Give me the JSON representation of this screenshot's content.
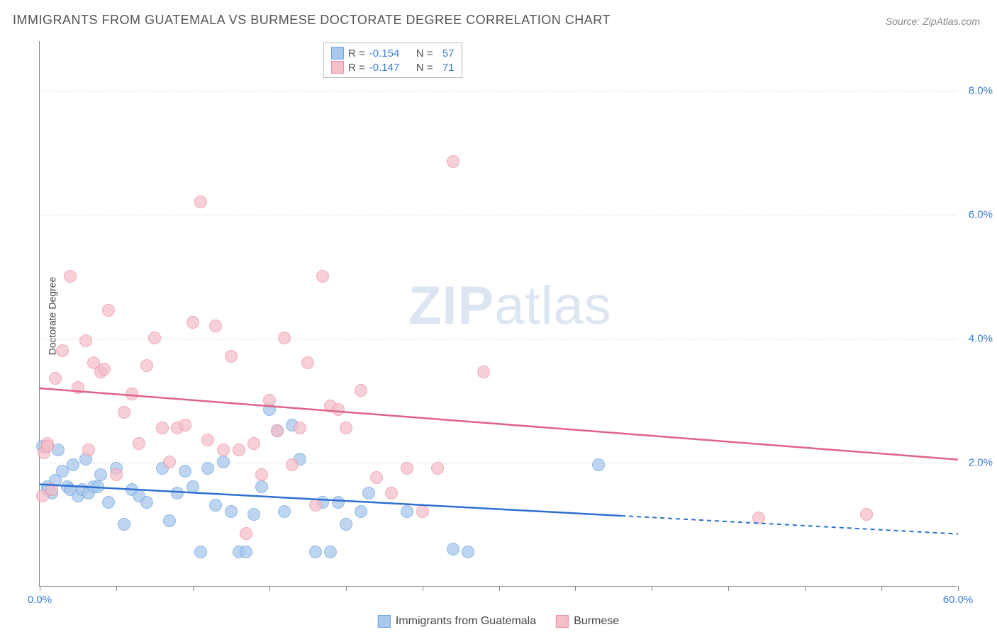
{
  "title": "IMMIGRANTS FROM GUATEMALA VS BURMESE DOCTORATE DEGREE CORRELATION CHART",
  "source_label": "Source: ZipAtlas.com",
  "y_axis_label": "Doctorate Degree",
  "watermark": {
    "bold": "ZIP",
    "rest": "atlas"
  },
  "chart": {
    "type": "scatter",
    "background_color": "#ffffff",
    "grid_color": "#dddddd",
    "axis_color": "#888888",
    "tick_label_color": "#3b7dd8",
    "xlim": [
      0,
      60
    ],
    "ylim": [
      0,
      8.8
    ],
    "x_ticks": [
      0,
      5,
      10,
      15,
      20,
      25,
      30,
      35,
      40,
      45,
      50,
      55,
      60
    ],
    "x_tick_labels": {
      "0": "0.0%",
      "60": "60.0%"
    },
    "y_ticks": [
      2,
      4,
      6,
      8
    ],
    "y_tick_labels": {
      "2": "2.0%",
      "4": "4.0%",
      "6": "6.0%",
      "8": "8.0%"
    },
    "marker_radius": 9,
    "marker_stroke_width": 1.5,
    "marker_fill_opacity": 0.35
  },
  "series": [
    {
      "name": "Immigrants from Guatemala",
      "color_fill": "#a8c8ec",
      "color_stroke": "#6fa3e0",
      "trend_color": "#2e6fd0",
      "R": "-0.154",
      "N": "57",
      "trend": {
        "x1": 0,
        "y1": 1.65,
        "x2": 60,
        "y2": 0.85,
        "solid_until_x": 38
      },
      "points": [
        [
          0.2,
          2.25
        ],
        [
          0.5,
          1.55
        ],
        [
          0.5,
          1.6
        ],
        [
          0.8,
          1.5
        ],
        [
          1.0,
          1.7
        ],
        [
          1.2,
          2.2
        ],
        [
          1.5,
          1.85
        ],
        [
          1.8,
          1.6
        ],
        [
          2.0,
          1.55
        ],
        [
          2.2,
          1.95
        ],
        [
          2.5,
          1.45
        ],
        [
          2.8,
          1.55
        ],
        [
          3.0,
          2.05
        ],
        [
          3.2,
          1.5
        ],
        [
          3.5,
          1.6
        ],
        [
          3.8,
          1.6
        ],
        [
          4.0,
          1.8
        ],
        [
          4.5,
          1.35
        ],
        [
          5.0,
          1.9
        ],
        [
          5.5,
          1.0
        ],
        [
          6.0,
          1.55
        ],
        [
          6.5,
          1.45
        ],
        [
          7.0,
          1.35
        ],
        [
          8.0,
          1.9
        ],
        [
          8.5,
          1.05
        ],
        [
          9.0,
          1.5
        ],
        [
          9.5,
          1.85
        ],
        [
          10.0,
          1.6
        ],
        [
          10.5,
          0.55
        ],
        [
          11.0,
          1.9
        ],
        [
          11.5,
          1.3
        ],
        [
          12.0,
          2.0
        ],
        [
          12.5,
          1.2
        ],
        [
          13.0,
          0.55
        ],
        [
          13.5,
          0.55
        ],
        [
          14.0,
          1.15
        ],
        [
          14.5,
          1.6
        ],
        [
          15.0,
          2.85
        ],
        [
          15.5,
          2.5
        ],
        [
          16.0,
          1.2
        ],
        [
          16.5,
          2.6
        ],
        [
          17.0,
          2.05
        ],
        [
          18.0,
          0.55
        ],
        [
          18.5,
          1.35
        ],
        [
          19.0,
          0.55
        ],
        [
          19.5,
          1.35
        ],
        [
          20.0,
          1.0
        ],
        [
          21.0,
          1.2
        ],
        [
          21.5,
          1.5
        ],
        [
          24.0,
          1.2
        ],
        [
          27.0,
          0.6
        ],
        [
          28.0,
          0.55
        ],
        [
          36.5,
          1.95
        ]
      ]
    },
    {
      "name": "Burmese",
      "color_fill": "#f5bfca",
      "color_stroke": "#ec91a5",
      "trend_color": "#e06385",
      "R": "-0.147",
      "N": "71",
      "trend": {
        "x1": 0,
        "y1": 3.2,
        "x2": 60,
        "y2": 2.05,
        "solid_until_x": 60
      },
      "points": [
        [
          0.2,
          1.45
        ],
        [
          0.3,
          2.15
        ],
        [
          0.5,
          2.3
        ],
        [
          0.5,
          2.25
        ],
        [
          0.8,
          1.55
        ],
        [
          1.0,
          3.35
        ],
        [
          1.5,
          3.8
        ],
        [
          2.0,
          5.0
        ],
        [
          2.5,
          3.2
        ],
        [
          3.0,
          3.95
        ],
        [
          3.2,
          2.2
        ],
        [
          3.5,
          3.6
        ],
        [
          4.0,
          3.45
        ],
        [
          4.2,
          3.5
        ],
        [
          4.5,
          4.45
        ],
        [
          5.0,
          1.8
        ],
        [
          5.5,
          2.8
        ],
        [
          6.0,
          3.1
        ],
        [
          6.5,
          2.3
        ],
        [
          7.0,
          3.55
        ],
        [
          7.5,
          4.0
        ],
        [
          8.0,
          2.55
        ],
        [
          8.5,
          2.0
        ],
        [
          9.0,
          2.55
        ],
        [
          9.5,
          2.6
        ],
        [
          10.0,
          4.25
        ],
        [
          10.5,
          6.2
        ],
        [
          11.0,
          2.35
        ],
        [
          11.5,
          4.2
        ],
        [
          12.0,
          2.2
        ],
        [
          12.5,
          3.7
        ],
        [
          13.0,
          2.2
        ],
        [
          13.5,
          0.85
        ],
        [
          14.0,
          2.3
        ],
        [
          14.5,
          1.8
        ],
        [
          15.0,
          3.0
        ],
        [
          15.5,
          2.5
        ],
        [
          16.0,
          4.0
        ],
        [
          16.5,
          1.95
        ],
        [
          17.0,
          2.55
        ],
        [
          17.5,
          3.6
        ],
        [
          18.0,
          1.3
        ],
        [
          18.5,
          5.0
        ],
        [
          19.0,
          2.9
        ],
        [
          19.5,
          2.85
        ],
        [
          20.0,
          2.55
        ],
        [
          21.0,
          3.15
        ],
        [
          22.0,
          1.75
        ],
        [
          23.0,
          1.5
        ],
        [
          24.0,
          1.9
        ],
        [
          25.0,
          1.2
        ],
        [
          26.0,
          1.9
        ],
        [
          27.0,
          6.85
        ],
        [
          29.0,
          3.45
        ],
        [
          47.0,
          1.1
        ],
        [
          54.0,
          1.15
        ]
      ]
    }
  ],
  "legend_top": {
    "R_label": "R =",
    "N_label": "N ="
  },
  "legend_bottom": {
    "items": [
      "Immigrants from Guatemala",
      "Burmese"
    ]
  }
}
